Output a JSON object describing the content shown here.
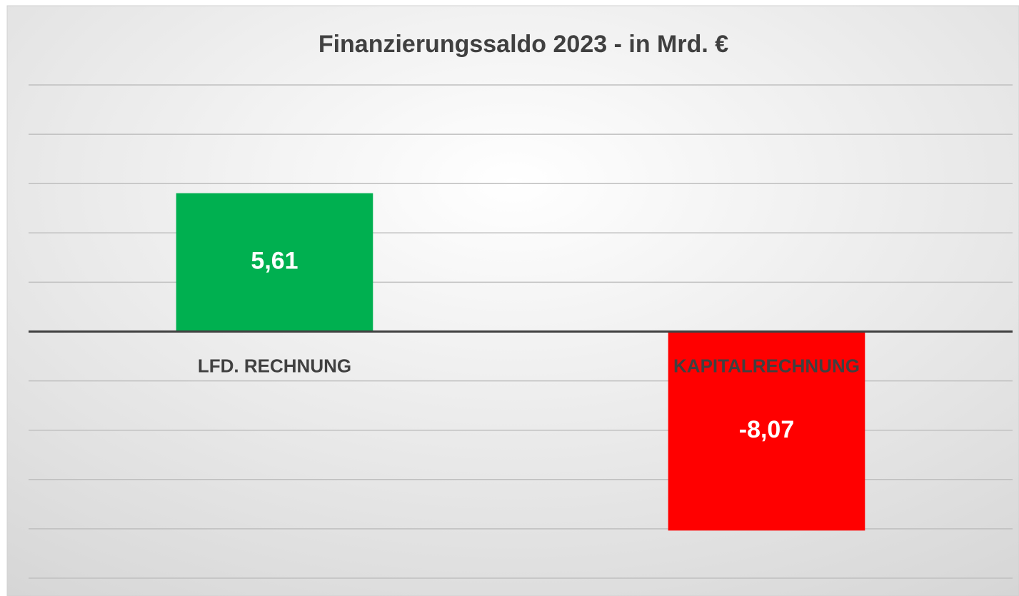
{
  "chart_data": {
    "type": "bar",
    "title": "Finanzierungssaldo 2023 - in Mrd. €",
    "categories": [
      "LFD. RECHNUNG",
      "KAPITALRECHNUNG"
    ],
    "values": [
      5.61,
      -8.07
    ],
    "value_labels": [
      "5,61",
      "-8,07"
    ],
    "colors": [
      "#00b050",
      "#ff0000"
    ],
    "ylim": [
      -10,
      10
    ],
    "yticks": [
      -10,
      -8,
      -6,
      -4,
      -2,
      0,
      2,
      4,
      6,
      8,
      10
    ],
    "grid": true
  }
}
